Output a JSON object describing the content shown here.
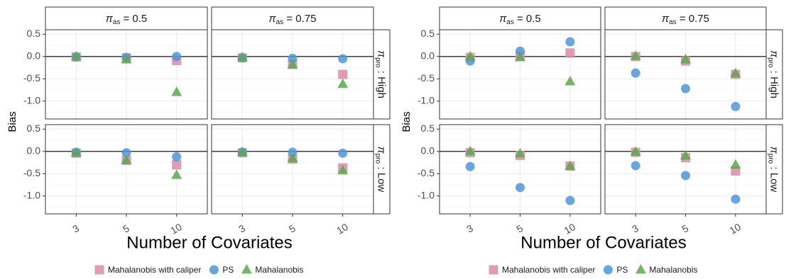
{
  "chart_data": [
    {
      "type": "scatter",
      "xlabel": "Number of Covariates",
      "ylabel": "Bias",
      "x_categories": [
        "3",
        "5",
        "10"
      ],
      "ylim": [
        -1.4,
        0.6
      ],
      "yticks": [
        "0.5",
        "0.0",
        "-0.5",
        "-1.0"
      ],
      "col_strips": [
        {
          "symbol": "π",
          "sub": "as",
          "rest": " = 0.5"
        },
        {
          "symbol": "π",
          "sub": "as",
          "rest": " = 0.75"
        }
      ],
      "row_strips": [
        {
          "symbol": "π",
          "sub": "pro",
          "rest": " : High"
        },
        {
          "symbol": "π",
          "sub": "pro",
          "rest": " : Low"
        }
      ],
      "panels": [
        {
          "row": 0,
          "col": 0,
          "series": {
            "Mahalanobis with caliper": [
              -0.01,
              -0.03,
              -0.09
            ],
            "PS": [
              -0.01,
              -0.02,
              0.0
            ],
            "Mahalanobis": [
              0.0,
              -0.07,
              -0.8
            ]
          }
        },
        {
          "row": 0,
          "col": 1,
          "series": {
            "Mahalanobis with caliper": [
              -0.03,
              -0.18,
              -0.4
            ],
            "PS": [
              -0.03,
              -0.04,
              -0.05
            ],
            "Mahalanobis": [
              -0.02,
              -0.18,
              -0.62
            ]
          }
        },
        {
          "row": 1,
          "col": 0,
          "series": {
            "Mahalanobis with caliper": [
              -0.04,
              -0.2,
              -0.3
            ],
            "PS": [
              -0.02,
              -0.03,
              -0.12
            ],
            "Mahalanobis": [
              -0.03,
              -0.2,
              -0.53
            ]
          }
        },
        {
          "row": 1,
          "col": 1,
          "series": {
            "Mahalanobis with caliper": [
              -0.03,
              -0.17,
              -0.37
            ],
            "PS": [
              -0.02,
              -0.02,
              -0.04
            ],
            "Mahalanobis": [
              -0.02,
              -0.16,
              -0.43
            ]
          }
        }
      ],
      "legend": {
        "placement": "bottom",
        "entries": [
          "Mahalanobis with caliper",
          "PS",
          "Mahalanobis"
        ]
      },
      "grid": true
    },
    {
      "type": "scatter",
      "xlabel": "Number of Covariates",
      "ylabel": "Bias",
      "x_categories": [
        "3",
        "5",
        "10"
      ],
      "ylim": [
        -1.4,
        0.6
      ],
      "yticks": [
        "0.5",
        "0.0",
        "-0.5",
        "-1.0"
      ],
      "col_strips": [
        {
          "symbol": "π",
          "sub": "as",
          "rest": " = 0.5"
        },
        {
          "symbol": "π",
          "sub": "as",
          "rest": " = 0.75"
        }
      ],
      "row_strips": [
        {
          "symbol": "π",
          "sub": "pro",
          "rest": " : High"
        },
        {
          "symbol": "π",
          "sub": "pro",
          "rest": " : Low"
        }
      ],
      "panels": [
        {
          "row": 0,
          "col": 0,
          "series": {
            "Mahalanobis with caliper": [
              -0.02,
              0.01,
              0.08
            ],
            "PS": [
              -0.1,
              0.12,
              0.33
            ],
            "Mahalanobis": [
              0.0,
              -0.02,
              -0.56
            ]
          }
        },
        {
          "row": 0,
          "col": 1,
          "series": {
            "Mahalanobis with caliper": [
              0.0,
              -0.1,
              -0.4
            ],
            "PS": [
              -0.37,
              -0.72,
              -1.12
            ],
            "Mahalanobis": [
              0.01,
              -0.07,
              -0.38
            ]
          }
        },
        {
          "row": 1,
          "col": 0,
          "series": {
            "Mahalanobis with caliper": [
              -0.03,
              -0.09,
              -0.33
            ],
            "PS": [
              -0.34,
              -0.81,
              -1.1
            ],
            "Mahalanobis": [
              0.0,
              -0.05,
              -0.33
            ]
          }
        },
        {
          "row": 1,
          "col": 1,
          "series": {
            "Mahalanobis with caliper": [
              -0.02,
              -0.14,
              -0.44
            ],
            "PS": [
              -0.32,
              -0.54,
              -1.07
            ],
            "Mahalanobis": [
              -0.01,
              -0.1,
              -0.3
            ]
          }
        }
      ],
      "legend": {
        "placement": "bottom",
        "entries": [
          "Mahalanobis with caliper",
          "PS",
          "Mahalanobis"
        ]
      },
      "grid": true
    }
  ],
  "colors": {
    "Mahalanobis with caliper": "#d98ba7",
    "PS": "#4f95dc",
    "Mahalanobis": "#5aa94e"
  },
  "shapes": {
    "Mahalanobis with caliper": "square",
    "PS": "circle",
    "Mahalanobis": "triangle"
  }
}
